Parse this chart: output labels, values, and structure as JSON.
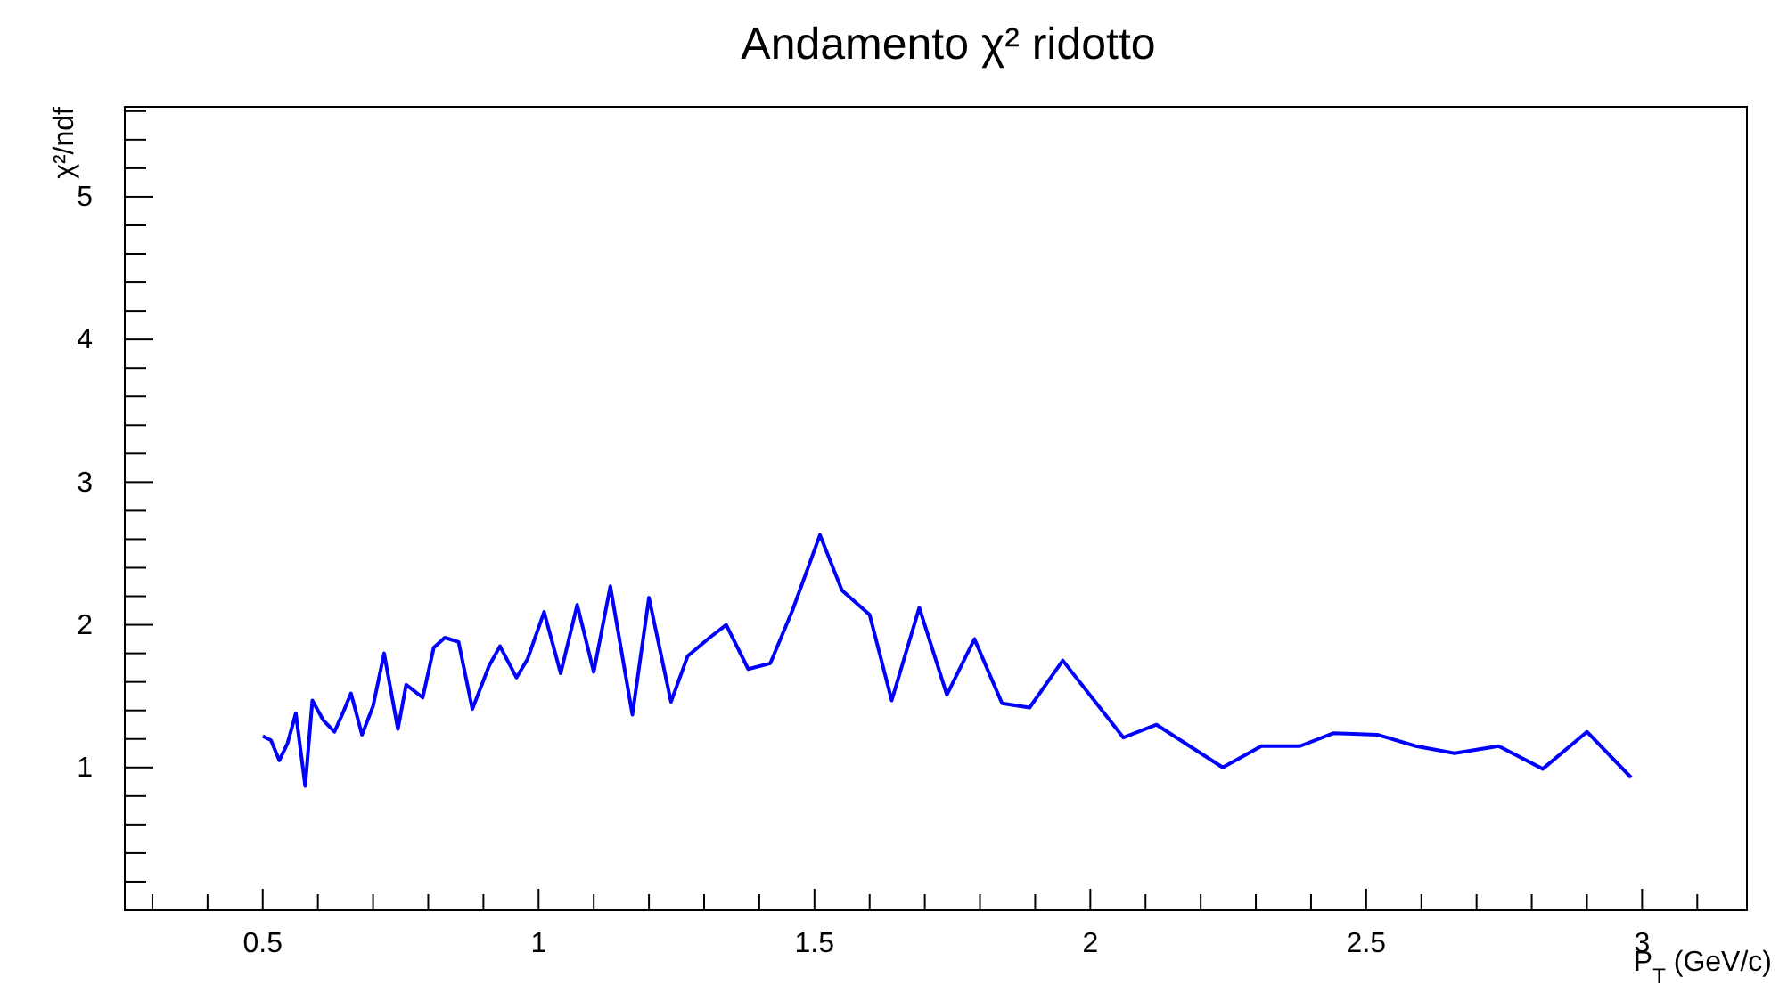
{
  "chart_data": {
    "type": "line",
    "title": "Andamento χ² ridotto",
    "xlabel": "P$_{T}$ (GeV/c)",
    "ylabel": "χ²/ndf",
    "x": [
      0.5,
      0.515,
      0.53,
      0.545,
      0.56,
      0.577,
      0.59,
      0.61,
      0.63,
      0.645,
      0.66,
      0.68,
      0.7,
      0.72,
      0.745,
      0.76,
      0.79,
      0.81,
      0.83,
      0.855,
      0.88,
      0.91,
      0.93,
      0.96,
      0.98,
      1.01,
      1.04,
      1.07,
      1.1,
      1.13,
      1.17,
      1.2,
      1.24,
      1.27,
      1.31,
      1.34,
      1.38,
      1.42,
      1.46,
      1.51,
      1.55,
      1.6,
      1.64,
      1.69,
      1.74,
      1.79,
      1.84,
      1.89,
      1.95,
      2.06,
      2.12,
      2.24,
      2.31,
      2.38,
      2.44,
      2.52,
      2.59,
      2.66,
      2.74,
      2.82,
      2.9,
      2.98
    ],
    "series": [
      {
        "color": "#0000ff",
        "values": [
          1.22,
          1.19,
          1.05,
          1.17,
          1.38,
          0.87,
          1.47,
          1.33,
          1.25,
          1.38,
          1.52,
          1.23,
          1.43,
          1.8,
          1.27,
          1.58,
          1.49,
          1.84,
          1.91,
          1.88,
          1.41,
          1.71,
          1.85,
          1.63,
          1.76,
          2.09,
          1.66,
          2.14,
          1.67,
          2.27,
          1.37,
          2.19,
          1.46,
          1.78,
          1.91,
          2.0,
          1.69,
          1.73,
          2.1,
          2.63,
          2.24,
          2.07,
          1.47,
          2.12,
          1.51,
          1.9,
          1.45,
          1.42,
          1.75,
          1.21,
          1.3,
          1.0,
          1.15,
          1.15,
          1.24,
          1.23,
          1.15,
          1.1,
          1.15,
          0.99,
          1.25,
          0.93
        ]
      }
    ],
    "xlim": [
      0.25,
      3.19
    ],
    "ylim": [
      0,
      5.63
    ],
    "xticks": [
      {
        "value": 0.3,
        "label": null
      },
      {
        "value": 0.4,
        "label": null
      },
      0.5,
      {
        "value": 0.6,
        "label": null
      },
      {
        "value": 0.7,
        "label": null
      },
      {
        "value": 0.8,
        "label": null
      },
      {
        "value": 0.9,
        "label": null
      },
      1,
      {
        "value": 1.1,
        "label": null
      },
      {
        "value": 1.2,
        "label": null
      },
      {
        "value": 1.3,
        "label": null
      },
      {
        "value": 1.4,
        "label": null
      },
      1.5,
      {
        "value": 1.6,
        "label": null
      },
      {
        "value": 1.7,
        "label": null
      },
      {
        "value": 1.8,
        "label": null
      },
      {
        "value": 1.9,
        "label": null
      },
      2,
      {
        "value": 2.1,
        "label": null
      },
      {
        "value": 2.2,
        "label": null
      },
      {
        "value": 2.3,
        "label": null
      },
      {
        "value": 2.4,
        "label": null
      },
      2.5,
      {
        "value": 2.6,
        "label": null
      },
      {
        "value": 2.7,
        "label": null
      },
      {
        "value": 2.8,
        "label": null
      },
      {
        "value": 2.9,
        "label": null
      },
      3,
      {
        "value": 3.1,
        "label": null
      }
    ],
    "yticks": [
      {
        "value": 0.2,
        "label": null
      },
      {
        "value": 0.4,
        "label": null
      },
      {
        "value": 0.6,
        "label": null
      },
      {
        "value": 0.8,
        "label": null
      },
      1,
      {
        "value": 1.2,
        "label": null
      },
      {
        "value": 1.4,
        "label": null
      },
      {
        "value": 1.6,
        "label": null
      },
      {
        "value": 1.8,
        "label": null
      },
      2,
      {
        "value": 2.2,
        "label": null
      },
      {
        "value": 2.4,
        "label": null
      },
      {
        "value": 2.6,
        "label": null
      },
      {
        "value": 2.8,
        "label": null
      },
      3,
      {
        "value": 3.2,
        "label": null
      },
      {
        "value": 3.4,
        "label": null
      },
      {
        "value": 3.6,
        "label": null
      },
      {
        "value": 3.8,
        "label": null
      },
      4,
      {
        "value": 4.2,
        "label": null
      },
      {
        "value": 4.4,
        "label": null
      },
      {
        "value": 4.6,
        "label": null
      },
      {
        "value": 4.8,
        "label": null
      },
      5,
      {
        "value": 5.2,
        "label": null
      },
      {
        "value": 5.4,
        "label": null
      },
      {
        "value": 5.6,
        "label": null
      }
    ],
    "grid": false,
    "marker": "none",
    "line_style": "solid"
  }
}
